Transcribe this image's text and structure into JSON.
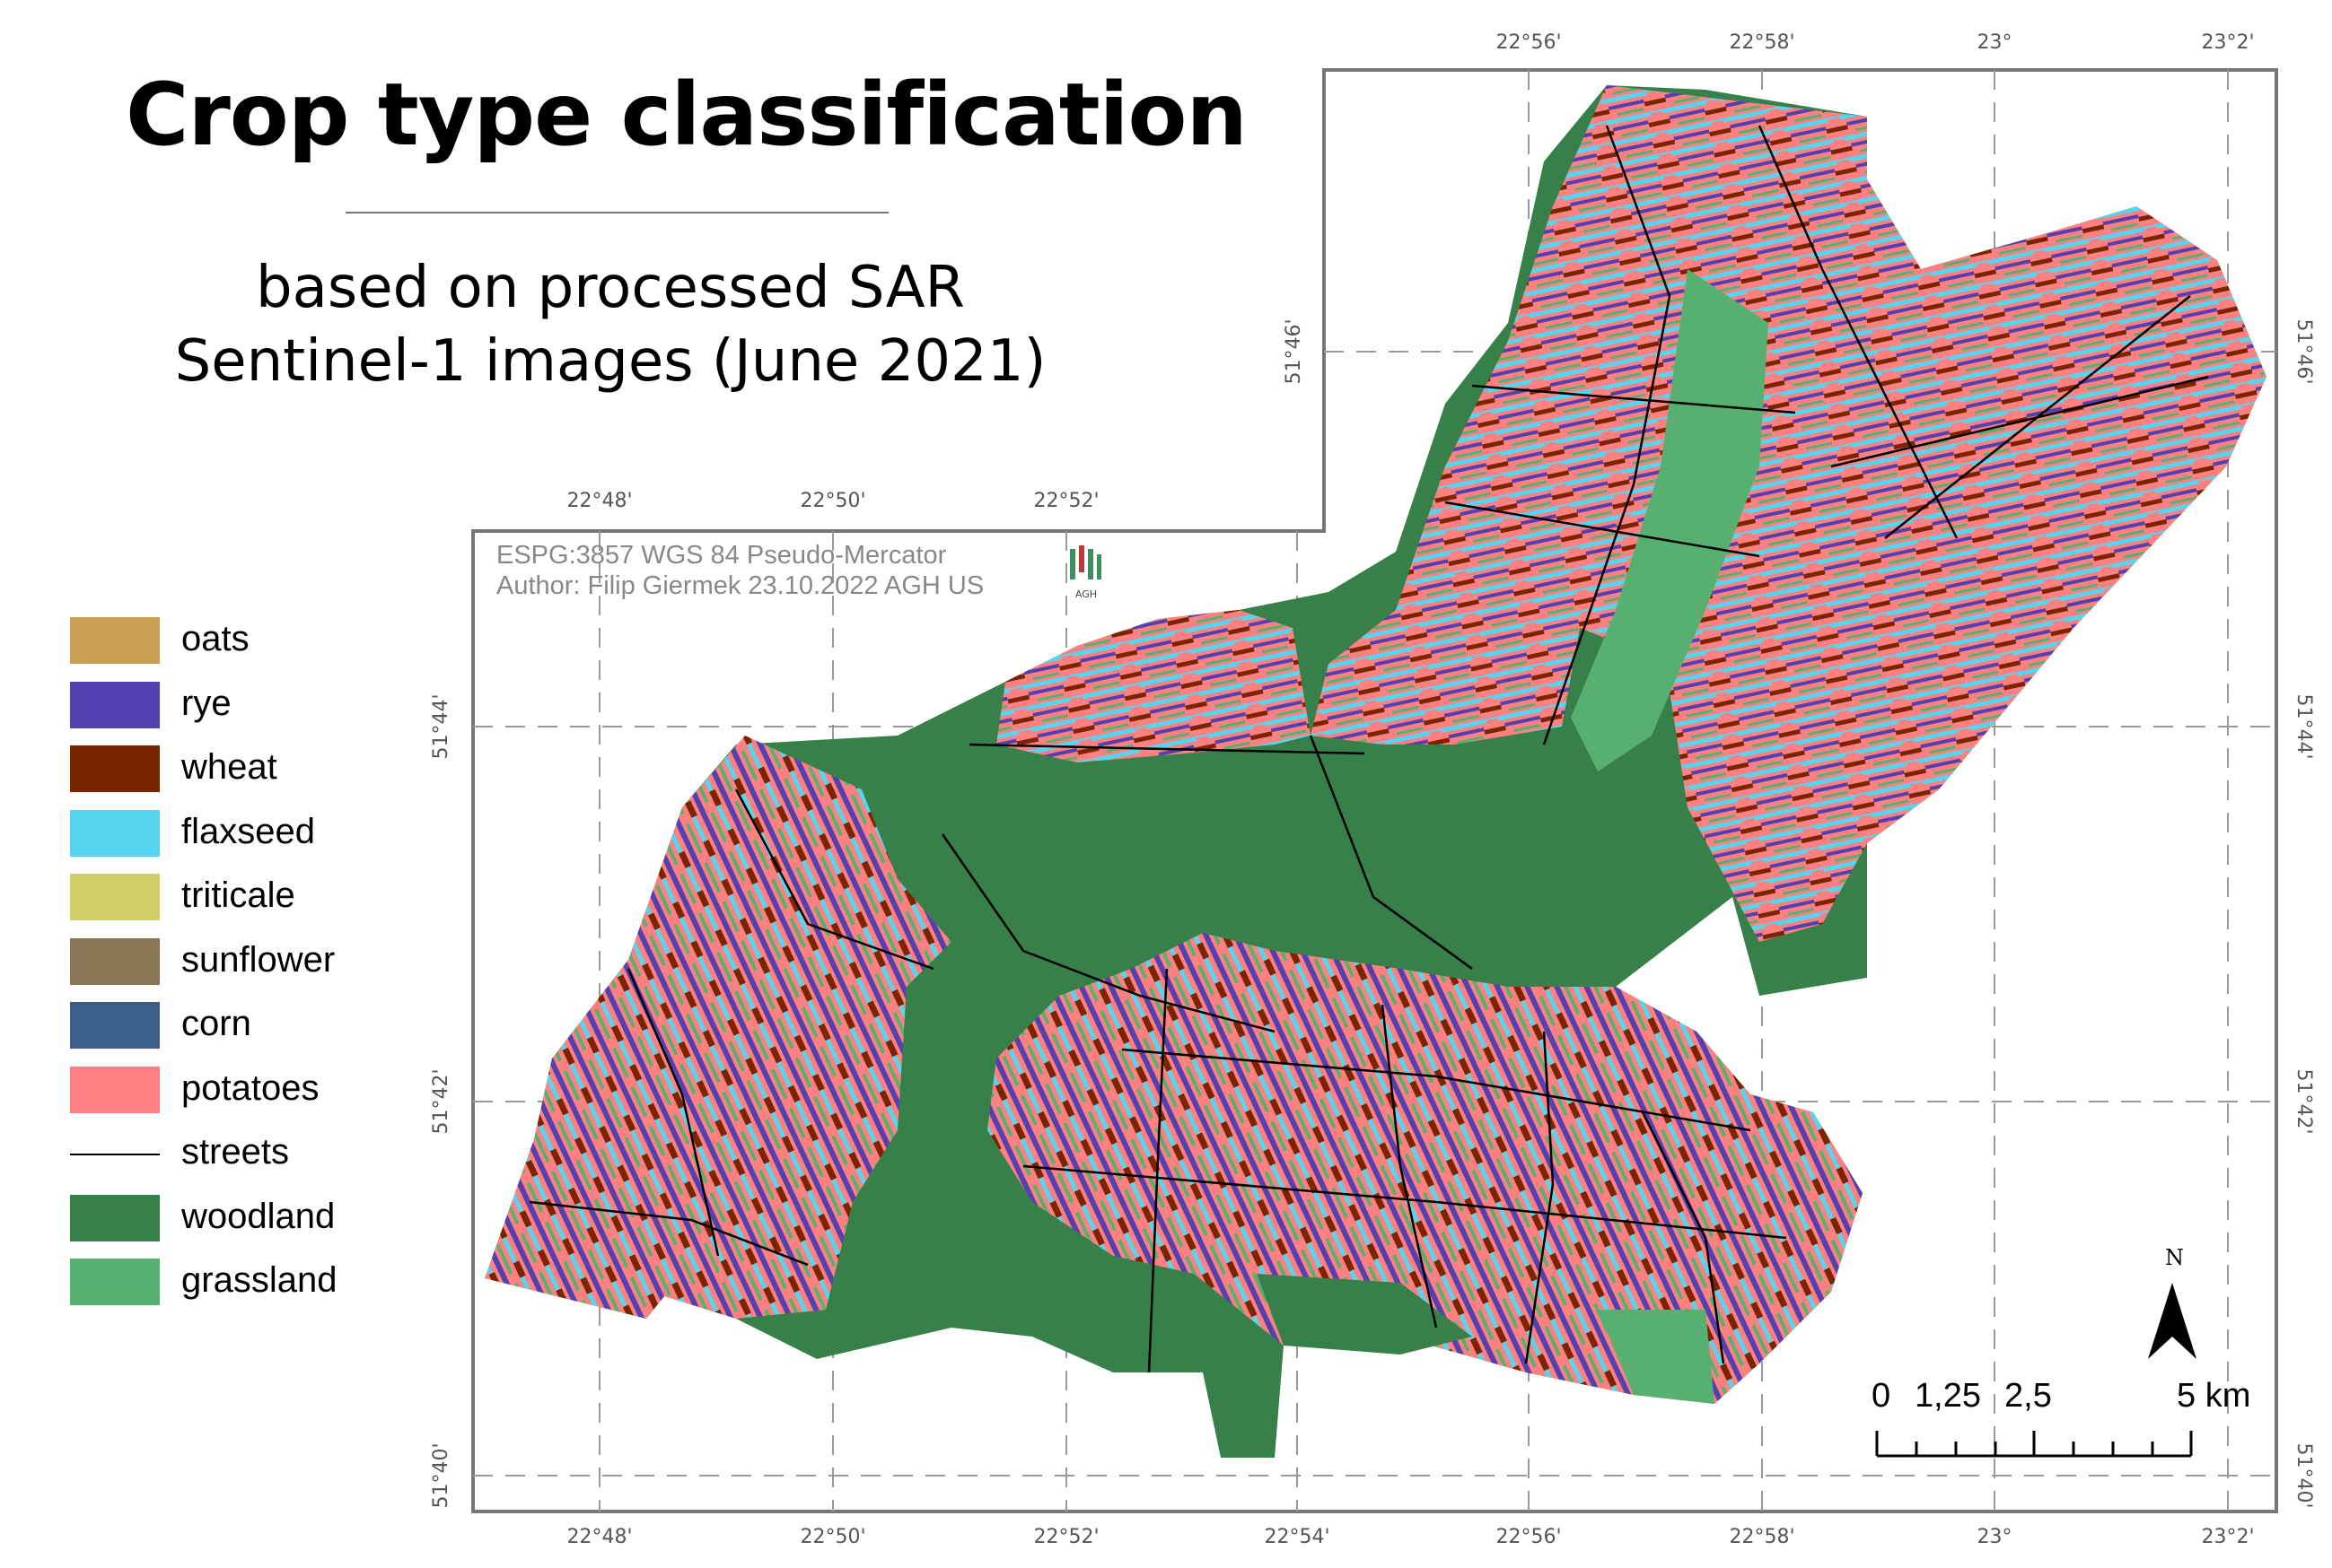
{
  "title": "Crop type classification",
  "subtitle_line1": "based on processed SAR",
  "subtitle_line2": "Sentinel-1 images (June 2021)",
  "meta": {
    "projection": "ESPG:3857 WGS 84 Pseudo-Mercator",
    "author": "Author: Filip Giermek 23.10.2022 AGH US",
    "logo_text": "AGH"
  },
  "legend": [
    {
      "label": "oats",
      "color": "#c9a052",
      "kind": "fill"
    },
    {
      "label": "rye",
      "color": "#5540b0",
      "kind": "fill"
    },
    {
      "label": "wheat",
      "color": "#7a2400",
      "kind": "fill"
    },
    {
      "label": "flaxseed",
      "color": "#55d6ee",
      "kind": "fill"
    },
    {
      "label": "triticale",
      "color": "#cfcf66",
      "kind": "fill"
    },
    {
      "label": "sunflower",
      "color": "#8a7758",
      "kind": "fill"
    },
    {
      "label": "corn",
      "color": "#3a5f8a",
      "kind": "fill"
    },
    {
      "label": "potatoes",
      "color": "#ff8080",
      "kind": "fill"
    },
    {
      "label": "streets",
      "color": "#000000",
      "kind": "line"
    },
    {
      "label": "woodland",
      "color": "#38804a",
      "kind": "fill"
    },
    {
      "label": "grassland",
      "color": "#57b070",
      "kind": "fill"
    }
  ],
  "grid": {
    "top_lon_labels": [
      "22°56'",
      "22°58'",
      "23°",
      "23°2'"
    ],
    "mid_lon_labels": [
      "22°48'",
      "22°50'",
      "22°52'"
    ],
    "bottom_lon_labels": [
      "22°48'",
      "22°50'",
      "22°52'",
      "22°54'",
      "22°56'",
      "22°58'",
      "23°",
      "23°2'"
    ],
    "left_lat_labels": [
      "51°44'",
      "51°42'",
      "51°40'"
    ],
    "upper_left_lat_labels": [
      "51°46'"
    ],
    "right_lat_labels": [
      "51°46'",
      "51°44'",
      "51°42'",
      "51°40'"
    ]
  },
  "north_label": "N",
  "scale_bar": {
    "labels": [
      "0",
      "1,25",
      "2,5",
      "5 km"
    ]
  }
}
